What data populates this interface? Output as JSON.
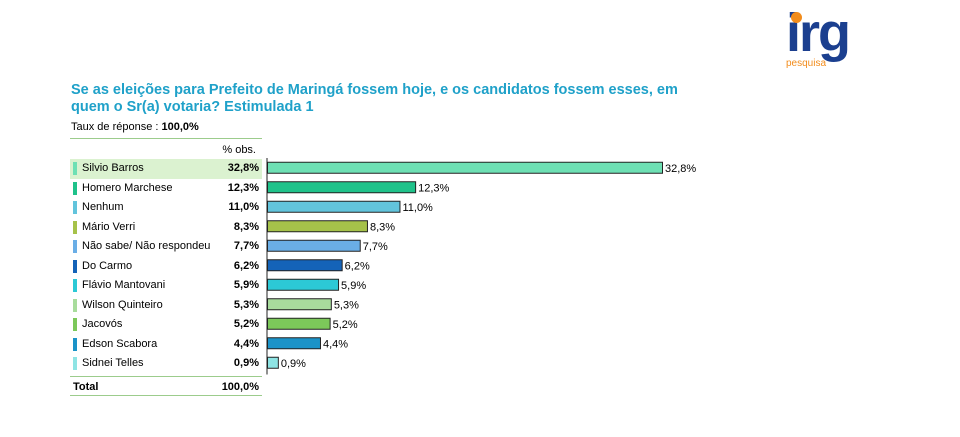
{
  "logo": {
    "word": "irg",
    "sub": "pesquisa"
  },
  "title": "Se as eleições para Prefeito de Maringá fossem hoje, e os candidatos fossem esses, em quem o Sr(a) votaria? Estimulada 1",
  "response": {
    "label": "Taux de réponse : ",
    "value": "100,0%"
  },
  "table": {
    "col_header": "% obs.",
    "total_label": "Total",
    "total_value": "100,0%"
  },
  "chart_data": {
    "type": "bar",
    "orientation": "horizontal",
    "categories": [
      "Silvio Barros",
      "Homero Marchese",
      "Nenhum",
      "Mário Verri",
      "Não sabe/ Não respondeu",
      "Do Carmo",
      "Flávio Mantovani",
      "Wilson Quinteiro",
      "Jacovós",
      "Edson Scabora",
      "Sidnei Telles"
    ],
    "values": [
      32.8,
      12.3,
      11.0,
      8.3,
      7.7,
      6.2,
      5.9,
      5.3,
      5.2,
      4.4,
      0.9
    ],
    "value_labels": [
      "32,8%",
      "12,3%",
      "11,0%",
      "8,3%",
      "7,7%",
      "6,2%",
      "5,9%",
      "5,3%",
      "5,2%",
      "4,4%",
      "0,9%"
    ],
    "colors": [
      "#6ee0b4",
      "#1fc28a",
      "#62c4dc",
      "#a6c24a",
      "#6aaee6",
      "#1463b8",
      "#2cc9d6",
      "#a8dc9c",
      "#7cc85a",
      "#1b93c8",
      "#8ee4e4"
    ],
    "xlim": [
      0,
      32.8
    ],
    "grid": false,
    "legend": "none"
  }
}
